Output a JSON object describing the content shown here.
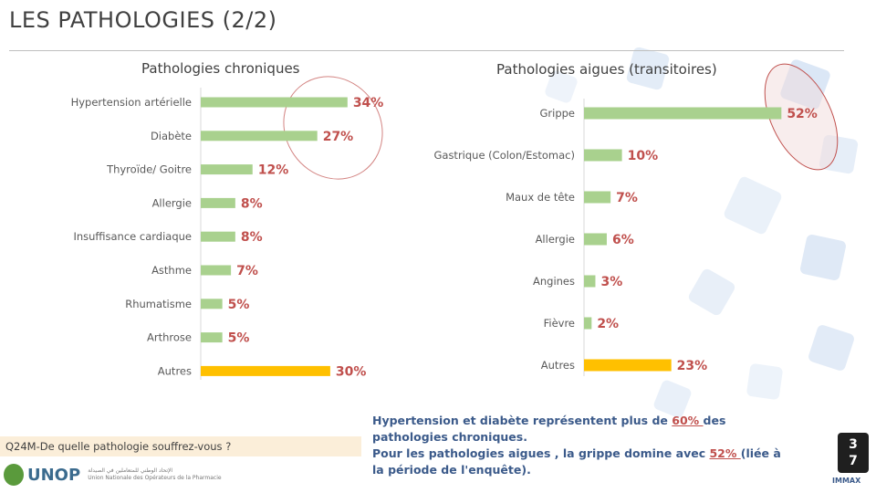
{
  "page": {
    "title": "LES PATHOLOGIES (2/2)",
    "question": "Q24M-De quelle pathologie souffrez-vous ?",
    "logo_name": "UNOP",
    "logo_arabic": "الإتحاد الوطني للمتعاملين في الصيدلة",
    "logo_french": "Union Nationale des Opérateurs de la Pharmacie",
    "page_number": [
      "3",
      "7"
    ],
    "brand": "IMMAX",
    "comment": {
      "line1_pre": "Hypertension et diabète représentent plus de ",
      "line1_highlight": "60% ",
      "line1_post": "des pathologies chroniques.",
      "line2_pre": "Pour les pathologies aigues , la grippe domine avec ",
      "line2_highlight": "52% ",
      "line2_post": "(liée à la période de l'enquête)."
    },
    "colors": {
      "bar": "#a9d18e",
      "highlight_bar": "#ffc000",
      "value": "#c0504d",
      "ellipse": "#c0504d"
    }
  },
  "chart_data": [
    {
      "type": "bar",
      "orientation": "horizontal",
      "title": "Pathologies chroniques",
      "categories": [
        "Hypertension artérielle",
        "Diabète",
        "Thyroïde/ Goitre",
        "Allergie",
        "Insuffisance cardiaque",
        "Asthme",
        "Rhumatisme",
        "Arthrose",
        "Autres"
      ],
      "values": [
        34,
        27,
        12,
        8,
        8,
        7,
        5,
        5,
        30
      ],
      "value_labels": [
        "34%",
        "27%",
        "12%",
        "8%",
        "8%",
        "7%",
        "5%",
        "5%",
        "30%"
      ],
      "highlight_index": 8
    },
    {
      "type": "bar",
      "orientation": "horizontal",
      "title": "Pathologies aigues (transitoires)",
      "categories": [
        "Grippe",
        "Gastrique (Colon/Estomac)",
        "Maux de tête",
        "Allergie",
        "Angines",
        "Fièvre",
        "Autres"
      ],
      "values": [
        52,
        10,
        7,
        6,
        3,
        2,
        23
      ],
      "value_labels": [
        "52%",
        "10%",
        "7%",
        "6%",
        "3%",
        "2%",
        "23%"
      ],
      "highlight_index": 6
    }
  ]
}
